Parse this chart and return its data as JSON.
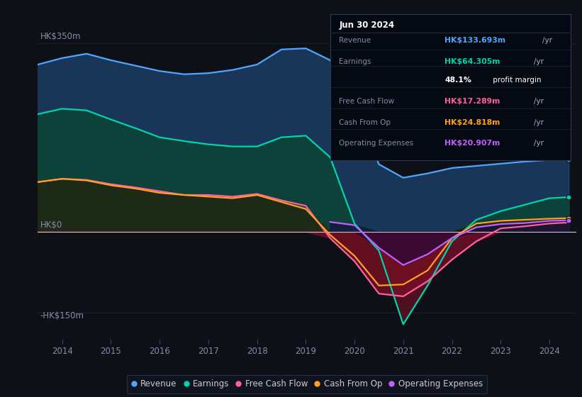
{
  "background_color": "#0d1117",
  "years": [
    2013.5,
    2014.0,
    2014.5,
    2015.0,
    2015.5,
    2016.0,
    2016.5,
    2017.0,
    2017.5,
    2018.0,
    2018.5,
    2019.0,
    2019.5,
    2020.0,
    2020.5,
    2021.0,
    2021.5,
    2022.0,
    2022.5,
    2023.0,
    2023.5,
    2024.0,
    2024.4
  ],
  "revenue": [
    310,
    322,
    330,
    318,
    308,
    298,
    292,
    294,
    300,
    310,
    338,
    340,
    318,
    240,
    125,
    100,
    108,
    118,
    122,
    126,
    130,
    133,
    134
  ],
  "earnings": [
    218,
    228,
    225,
    208,
    192,
    175,
    168,
    162,
    158,
    158,
    175,
    178,
    138,
    15,
    -35,
    -172,
    -100,
    -18,
    22,
    38,
    50,
    62,
    64
  ],
  "fcf": [
    92,
    98,
    96,
    88,
    82,
    75,
    68,
    68,
    65,
    70,
    58,
    48,
    -12,
    -55,
    -115,
    -120,
    -92,
    -52,
    -18,
    6,
    10,
    15,
    17
  ],
  "cfop": [
    92,
    98,
    95,
    86,
    80,
    72,
    68,
    65,
    62,
    68,
    55,
    42,
    -6,
    -45,
    -100,
    -98,
    -72,
    -12,
    15,
    20,
    22,
    24,
    25
  ],
  "opex": [
    null,
    null,
    null,
    null,
    null,
    null,
    null,
    null,
    null,
    null,
    null,
    null,
    18,
    12,
    -30,
    -62,
    -42,
    -12,
    8,
    14,
    16,
    20,
    21
  ],
  "colors": {
    "revenue_line": "#4da6ff",
    "revenue_fill": "#1b3b60",
    "earnings_line": "#00d4aa",
    "earnings_fill_pos": "#0a4535",
    "earnings_fill_neg": "#5a1020",
    "fcf_line": "#ff5f9e",
    "fcf_fill_neg": "#7a0f28",
    "cfop_line": "#ffa020",
    "opex_line": "#c060ff",
    "opex_fill": "#1a0840",
    "zero_line": "#cccccc",
    "grid": "#1e2a40",
    "tick_label": "#888aaa",
    "bg": "#0d1117"
  },
  "ytick_vals": [
    350,
    0,
    -150
  ],
  "ytick_labels": [
    "HK$350m",
    "HK$0",
    "-HK$150m"
  ],
  "xtick_vals": [
    2014,
    2015,
    2016,
    2017,
    2018,
    2019,
    2020,
    2021,
    2022,
    2023,
    2024
  ],
  "ylim": [
    -200,
    415
  ],
  "xlim_start": 2013.5,
  "xlim_end": 2024.55,
  "infobox": {
    "title": "Jun 30 2024",
    "rows": [
      {
        "label": "Revenue",
        "value": "HK$133.693m",
        "unit": "/yr",
        "value_color": "#4da6ff",
        "sub": null
      },
      {
        "label": "Earnings",
        "value": "HK$64.305m",
        "unit": "/yr",
        "value_color": "#00d4aa",
        "sub": "48.1% profit margin"
      },
      {
        "label": "Free Cash Flow",
        "value": "HK$17.289m",
        "unit": "/yr",
        "value_color": "#ff5f9e",
        "sub": null
      },
      {
        "label": "Cash From Op",
        "value": "HK$24.818m",
        "unit": "/yr",
        "value_color": "#ffa020",
        "sub": null
      },
      {
        "label": "Operating Expenses",
        "value": "HK$20.907m",
        "unit": "/yr",
        "value_color": "#c060ff",
        "sub": null
      }
    ]
  },
  "legend": [
    {
      "label": "Revenue",
      "color": "#4da6ff"
    },
    {
      "label": "Earnings",
      "color": "#00d4aa"
    },
    {
      "label": "Free Cash Flow",
      "color": "#ff5f9e"
    },
    {
      "label": "Cash From Op",
      "color": "#ffa020"
    },
    {
      "label": "Operating Expenses",
      "color": "#c060ff"
    }
  ]
}
